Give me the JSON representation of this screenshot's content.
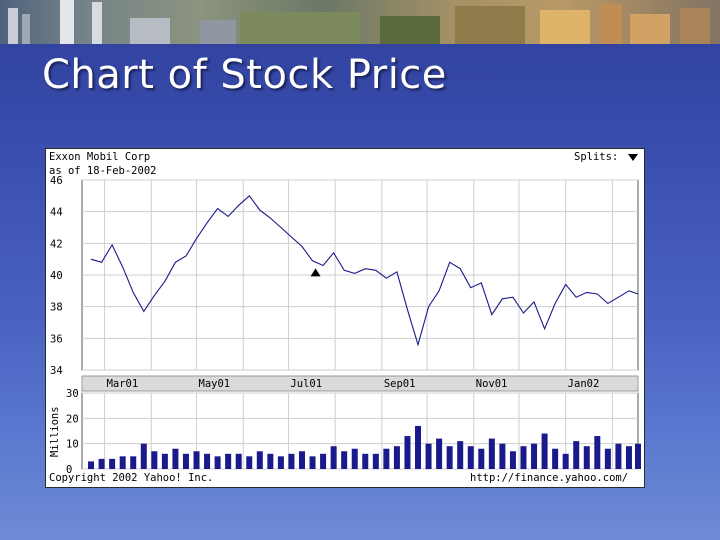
{
  "slide": {
    "title": "Chart of Stock Price"
  },
  "chart_data": {
    "type": "line",
    "company": "Exxon Mobil Corp",
    "as_of": "as of 18-Feb-2002",
    "splits_label": "Splits:",
    "copyright": "Copyright 2002 Yahoo! Inc.",
    "source_url": "http://finance.yahoo.com/",
    "price_axis": {
      "ylim": [
        34,
        46
      ],
      "ticks": [
        "46",
        "44",
        "42",
        "40",
        "38",
        "36",
        "34"
      ]
    },
    "date_ticks": [
      "Mar01",
      "May01",
      "Jul01",
      "Sep01",
      "Nov01",
      "Jan02"
    ],
    "volume_axis": {
      "ylabel": "Millions",
      "ylim": [
        0,
        30
      ],
      "ticks": [
        "30",
        "20",
        "10",
        "0"
      ]
    },
    "split_marker_date": "2001-07-19",
    "price_series": {
      "x": [
        "2001-02-20",
        "2001-02-27",
        "2001-03-06",
        "2001-03-13",
        "2001-03-20",
        "2001-03-27",
        "2001-04-03",
        "2001-04-10",
        "2001-04-17",
        "2001-04-24",
        "2001-05-01",
        "2001-05-08",
        "2001-05-15",
        "2001-05-22",
        "2001-05-29",
        "2001-06-05",
        "2001-06-12",
        "2001-06-19",
        "2001-06-26",
        "2001-07-03",
        "2001-07-10",
        "2001-07-17",
        "2001-07-24",
        "2001-07-31",
        "2001-08-07",
        "2001-08-14",
        "2001-08-21",
        "2001-08-28",
        "2001-09-04",
        "2001-09-11",
        "2001-09-18",
        "2001-09-25",
        "2001-10-02",
        "2001-10-09",
        "2001-10-16",
        "2001-10-23",
        "2001-10-30",
        "2001-11-06",
        "2001-11-13",
        "2001-11-20",
        "2001-11-27",
        "2001-12-04",
        "2001-12-11",
        "2001-12-18",
        "2001-12-25",
        "2002-01-01",
        "2002-01-08",
        "2002-01-15",
        "2002-01-22",
        "2002-01-29",
        "2002-02-05",
        "2002-02-12",
        "2002-02-18"
      ],
      "y": [
        41.0,
        40.8,
        41.9,
        40.5,
        38.9,
        37.7,
        38.7,
        39.6,
        40.8,
        41.2,
        42.3,
        43.3,
        44.2,
        43.7,
        44.4,
        45.0,
        44.1,
        43.6,
        43.0,
        42.4,
        41.8,
        40.9,
        40.6,
        41.4,
        40.3,
        40.1,
        40.4,
        40.3,
        39.8,
        40.2,
        37.8,
        35.6,
        38.0,
        39.0,
        40.8,
        40.4,
        39.2,
        39.5,
        37.5,
        38.5,
        38.6,
        37.6,
        38.3,
        36.6,
        38.2,
        39.4,
        38.6,
        38.9,
        38.8,
        38.2,
        38.6,
        39.0,
        38.8
      ]
    },
    "volume_series": {
      "y": [
        3,
        4,
        4,
        5,
        5,
        10,
        7,
        6,
        8,
        6,
        7,
        6,
        5,
        6,
        6,
        5,
        7,
        6,
        5,
        6,
        7,
        5,
        6,
        9,
        7,
        8,
        6,
        6,
        8,
        9,
        13,
        17,
        10,
        12,
        9,
        11,
        9,
        8,
        12,
        10,
        7,
        9,
        10,
        14,
        8,
        6,
        11,
        9,
        13,
        8,
        10,
        9,
        10
      ]
    }
  }
}
